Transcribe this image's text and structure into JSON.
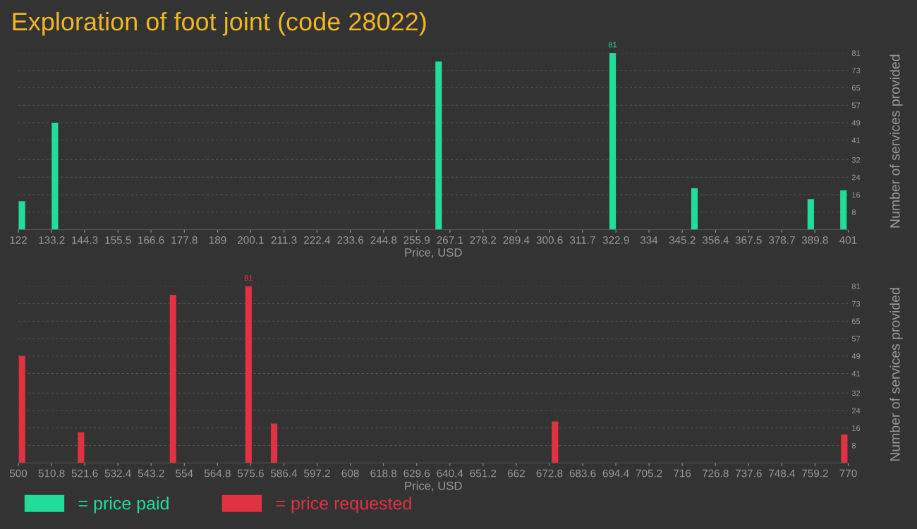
{
  "chart_data": [
    {
      "type": "bar",
      "title": "Exploration of foot joint (code 28022)",
      "xlabel": "Price, USD",
      "ylabel": "Number of services provided",
      "x": [
        123.2,
        134.3,
        263.3,
        321.8,
        349.3,
        388.4,
        399.4
      ],
      "series": [
        {
          "name": "= price paid",
          "color": "#22dd99",
          "values": [
            13,
            49,
            77,
            81,
            19,
            14,
            18
          ],
          "value_labels": [
            null,
            null,
            null,
            "81",
            null,
            null,
            null
          ]
        }
      ],
      "xlim": [
        122,
        401
      ],
      "xticks": [
        122,
        133.2,
        144.3,
        155.5,
        166.6,
        177.8,
        189,
        200.1,
        211.3,
        222.4,
        233.6,
        244.8,
        255.9,
        267.1,
        278.2,
        289.4,
        300.6,
        311.7,
        322.9,
        334,
        345.2,
        356.4,
        367.5,
        378.7,
        389.8,
        401
      ],
      "ylim": [
        0,
        81
      ],
      "yticks": [
        8,
        16,
        24,
        32,
        41,
        49,
        57,
        65,
        73,
        81
      ],
      "grid": "y",
      "legend": "bottom left"
    },
    {
      "type": "bar",
      "xlabel": "Price, USD",
      "ylabel": "Number of services provided",
      "x": [
        501.2,
        520.4,
        550.3,
        574.9,
        583.2,
        674.6,
        768.7
      ],
      "series": [
        {
          "name": "= price requested",
          "color": "#e03241",
          "values": [
            49,
            14,
            77,
            81,
            18,
            19,
            13
          ],
          "value_labels": [
            null,
            null,
            null,
            "81",
            null,
            null,
            null
          ]
        }
      ],
      "xlim": [
        500,
        770
      ],
      "xticks": [
        500,
        510.8,
        521.6,
        532.4,
        543.2,
        554,
        564.8,
        575.6,
        586.4,
        597.2,
        608,
        618.8,
        629.6,
        640.4,
        651.2,
        662,
        672.8,
        683.6,
        694.4,
        705.2,
        716,
        726.8,
        737.6,
        748.4,
        759.2,
        770
      ],
      "ylim": [
        0,
        81
      ],
      "yticks": [
        8,
        16,
        24,
        32,
        41,
        49,
        57,
        65,
        73,
        81
      ],
      "grid": "y",
      "legend": "bottom left"
    }
  ]
}
